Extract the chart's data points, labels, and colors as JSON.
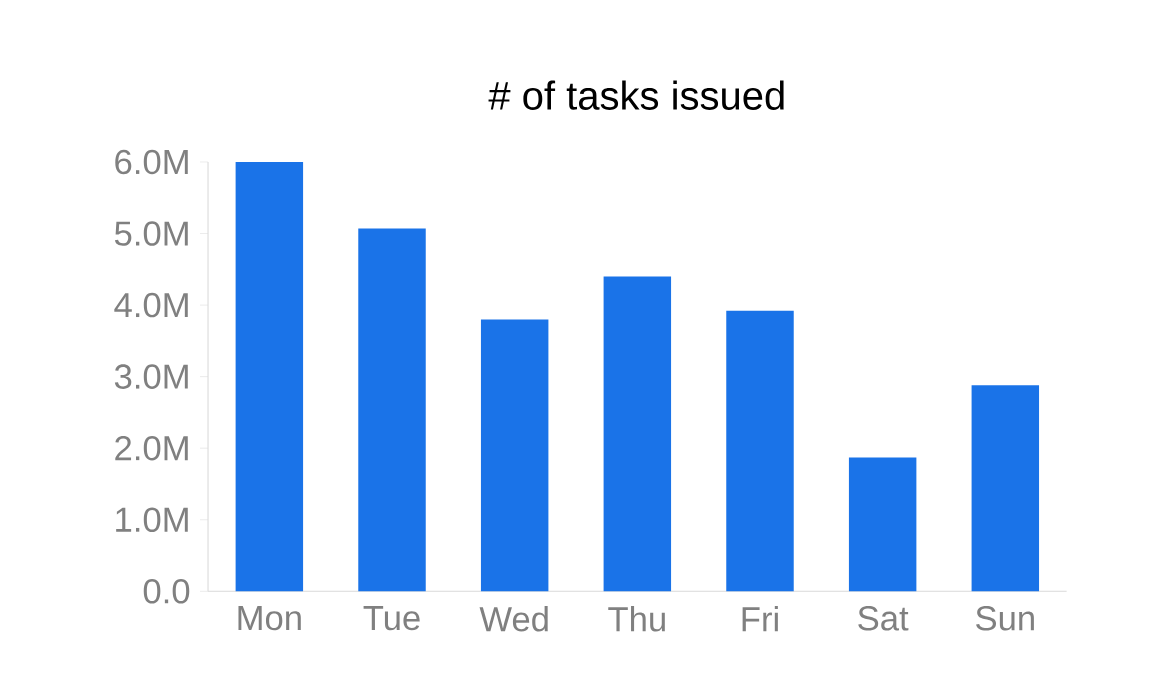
{
  "chart_data": {
    "type": "bar",
    "title": "# of tasks issued",
    "categories": [
      "Mon",
      "Tue",
      "Wed",
      "Thu",
      "Fri",
      "Sat",
      "Sun"
    ],
    "values": [
      6.0,
      5.07,
      3.8,
      4.4,
      3.92,
      1.87,
      2.88
    ],
    "color": "#1a73e8",
    "ylim": [
      0,
      6.0
    ],
    "yticks": [
      {
        "value": 0,
        "label": "0.0"
      },
      {
        "value": 1,
        "label": "1.0M"
      },
      {
        "value": 2,
        "label": "2.0M"
      },
      {
        "value": 3,
        "label": "3.0M"
      },
      {
        "value": 4,
        "label": "4.0M"
      },
      {
        "value": 5,
        "label": "5.0M"
      },
      {
        "value": 6,
        "label": "6.0M"
      }
    ],
    "grid": false
  }
}
